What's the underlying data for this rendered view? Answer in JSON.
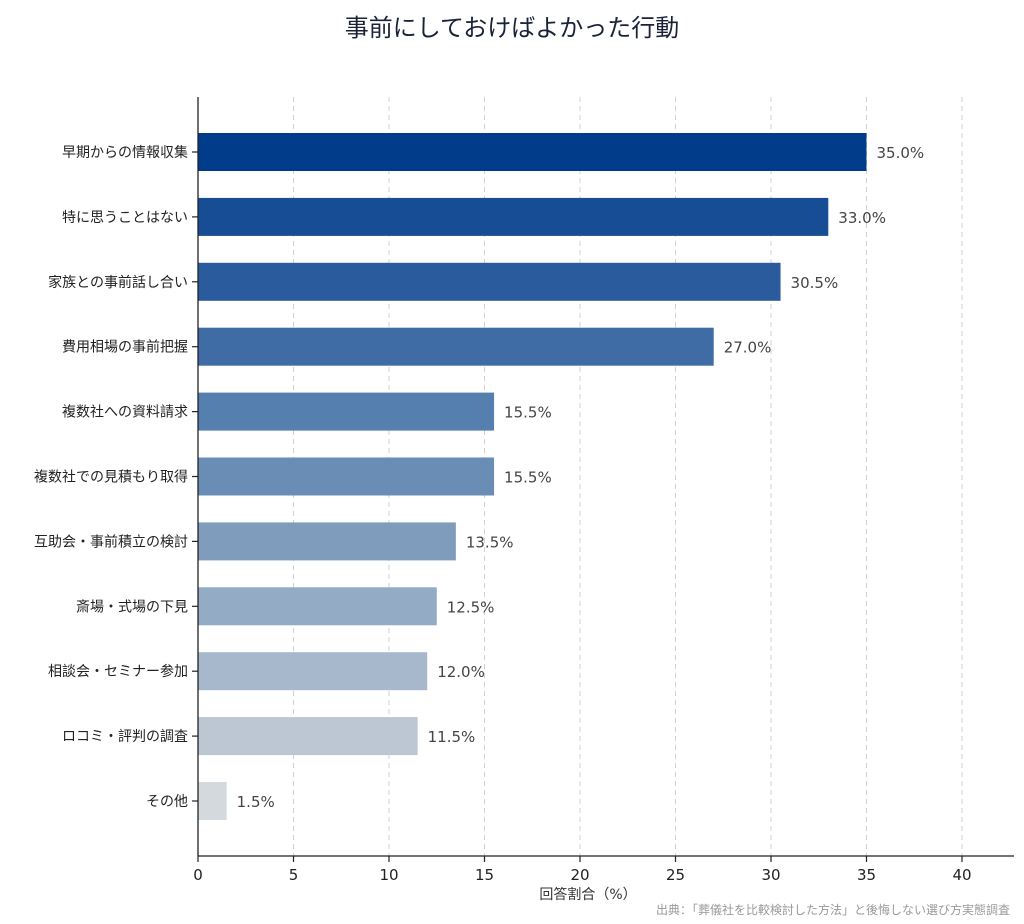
{
  "chart_data": {
    "type": "bar",
    "orientation": "horizontal",
    "title": "事前にしておけばよかった行動",
    "xlabel": "回答割合（%）",
    "ylabel": "",
    "xlim": [
      0,
      42.5
    ],
    "xticks": [
      0,
      5,
      10,
      15,
      20,
      25,
      30,
      35,
      40
    ],
    "grid": "x, dashed",
    "categories": [
      "早期からの情報収集",
      "特に思うことはない",
      "家族との事前話し合い",
      "費用相場の事前把握",
      "複数社への資料請求",
      "複数社での見積もり取得",
      "互助会・事前積立の検討",
      "斎場・式場の下見",
      "相談会・セミナー参加",
      "ロコミ・評判の調査",
      "その他"
    ],
    "values": [
      35.0,
      33.0,
      30.5,
      27.0,
      15.5,
      15.5,
      13.5,
      12.5,
      12.0,
      11.5,
      1.5
    ],
    "value_labels": [
      "35.0%",
      "33.0%",
      "30.5%",
      "27.0%",
      "15.5%",
      "15.5%",
      "13.5%",
      "12.5%",
      "12.0%",
      "11.5%",
      "1.5%"
    ],
    "colors": [
      "#003c8a",
      "#174d95",
      "#2a5b9c",
      "#3f6ca4",
      "#557fae",
      "#6a8db5",
      "#7f9cbd",
      "#93abc5",
      "#a8b8cc",
      "#bcc7d3",
      "#d3d9dd"
    ],
    "source": "出典：「葬儀社を比較検討した方法」と後悔しない選び方実態調査"
  }
}
